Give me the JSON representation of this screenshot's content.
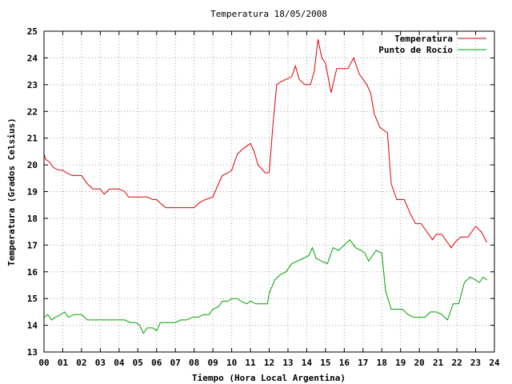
{
  "chart_data": {
    "type": "line",
    "title": "Temperatura 18/05/2008",
    "xlabel": "Tiempo (Hora Local Argentina)",
    "ylabel": "Temperatura (Grados Celsius)",
    "xlim": [
      0,
      24
    ],
    "ylim": [
      13,
      25
    ],
    "xticks": [
      "00",
      "01",
      "02",
      "03",
      "04",
      "05",
      "06",
      "07",
      "08",
      "09",
      "10",
      "11",
      "12",
      "13",
      "14",
      "15",
      "16",
      "17",
      "18",
      "19",
      "20",
      "21",
      "22",
      "23",
      "24"
    ],
    "yticks": [
      "13",
      "14",
      "15",
      "16",
      "17",
      "18",
      "19",
      "20",
      "21",
      "22",
      "23",
      "24",
      "25"
    ],
    "grid": true,
    "legend_position": "top-right",
    "series": [
      {
        "name": "Temperatura",
        "color": "#e00000",
        "x": [
          0,
          0.1,
          0.3,
          0.5,
          0.8,
          1.0,
          1.2,
          1.5,
          2.0,
          2.3,
          2.6,
          3.0,
          3.2,
          3.5,
          4.0,
          4.3,
          4.5,
          5.0,
          5.5,
          5.8,
          6.0,
          6.3,
          6.5,
          6.8,
          7.5,
          8.0,
          8.3,
          8.6,
          9.0,
          9.3,
          9.5,
          9.8,
          10.0,
          10.3,
          10.6,
          10.8,
          11.0,
          11.2,
          11.4,
          11.8,
          12.0,
          12.2,
          12.4,
          12.6,
          12.9,
          13.2,
          13.4,
          13.6,
          13.9,
          14.2,
          14.4,
          14.6,
          14.8,
          15.0,
          15.3,
          15.6,
          15.9,
          16.2,
          16.5,
          16.8,
          17.2,
          17.4,
          17.6,
          17.9,
          18.1,
          18.3,
          18.5,
          18.8,
          19.2,
          19.5,
          19.8,
          20.1,
          20.4,
          20.7,
          20.9,
          21.2,
          21.5,
          21.7,
          21.9,
          22.2,
          22.6,
          23.0,
          23.3,
          23.6
        ],
        "y": [
          20.4,
          20.2,
          20.1,
          19.9,
          19.8,
          19.8,
          19.7,
          19.6,
          19.6,
          19.3,
          19.1,
          19.1,
          18.9,
          19.1,
          19.1,
          19.0,
          18.8,
          18.8,
          18.8,
          18.7,
          18.7,
          18.5,
          18.4,
          18.4,
          18.4,
          18.4,
          18.6,
          18.7,
          18.8,
          19.3,
          19.6,
          19.7,
          19.8,
          20.4,
          20.6,
          20.7,
          20.8,
          20.5,
          20.0,
          19.7,
          19.7,
          21.5,
          23.0,
          23.1,
          23.2,
          23.3,
          23.7,
          23.2,
          23.0,
          23.0,
          23.5,
          24.7,
          24.0,
          23.8,
          22.7,
          23.6,
          23.6,
          23.6,
          24.0,
          23.4,
          23.0,
          22.7,
          21.9,
          21.4,
          21.3,
          21.2,
          19.3,
          18.7,
          18.7,
          18.2,
          17.8,
          17.8,
          17.5,
          17.2,
          17.4,
          17.4,
          17.1,
          16.9,
          17.1,
          17.3,
          17.3,
          17.7,
          17.5,
          17.1
        ]
      },
      {
        "name": "Punto de Rocío",
        "color": "#00a000",
        "x": [
          0,
          0.2,
          0.4,
          0.6,
          0.9,
          1.1,
          1.3,
          1.6,
          2.0,
          2.3,
          2.6,
          3.0,
          3.4,
          3.7,
          4.0,
          4.3,
          4.6,
          4.9,
          5.1,
          5.3,
          5.5,
          5.8,
          6.0,
          6.2,
          6.5,
          6.8,
          7.0,
          7.3,
          7.6,
          7.9,
          8.2,
          8.5,
          8.8,
          9.0,
          9.3,
          9.5,
          9.8,
          10.0,
          10.3,
          10.5,
          10.8,
          11.0,
          11.3,
          11.6,
          11.9,
          12.0,
          12.3,
          12.6,
          12.9,
          13.2,
          13.5,
          13.8,
          14.1,
          14.3,
          14.5,
          14.8,
          15.1,
          15.4,
          15.7,
          16.0,
          16.3,
          16.6,
          16.9,
          17.1,
          17.3,
          17.7,
          18.0,
          18.2,
          18.5,
          18.8,
          19.1,
          19.4,
          19.7,
          20.0,
          20.3,
          20.6,
          20.9,
          21.2,
          21.5,
          21.8,
          22.1,
          22.4,
          22.7,
          23.0,
          23.2,
          23.4,
          23.6
        ],
        "y": [
          14.3,
          14.4,
          14.2,
          14.3,
          14.4,
          14.5,
          14.3,
          14.4,
          14.4,
          14.2,
          14.2,
          14.2,
          14.2,
          14.2,
          14.2,
          14.2,
          14.1,
          14.1,
          14.0,
          13.7,
          13.9,
          13.9,
          13.8,
          14.1,
          14.1,
          14.1,
          14.1,
          14.2,
          14.2,
          14.3,
          14.3,
          14.4,
          14.4,
          14.6,
          14.7,
          14.9,
          14.9,
          15.0,
          15.0,
          14.9,
          14.8,
          14.9,
          14.8,
          14.8,
          14.8,
          15.2,
          15.7,
          15.9,
          16.0,
          16.3,
          16.4,
          16.5,
          16.6,
          16.9,
          16.5,
          16.4,
          16.3,
          16.9,
          16.8,
          17.0,
          17.2,
          16.9,
          16.8,
          16.7,
          16.4,
          16.8,
          16.7,
          15.3,
          14.6,
          14.6,
          14.6,
          14.4,
          14.3,
          14.3,
          14.3,
          14.5,
          14.5,
          14.4,
          14.2,
          14.8,
          14.8,
          15.6,
          15.8,
          15.7,
          15.6,
          15.8,
          15.7
        ]
      }
    ]
  }
}
